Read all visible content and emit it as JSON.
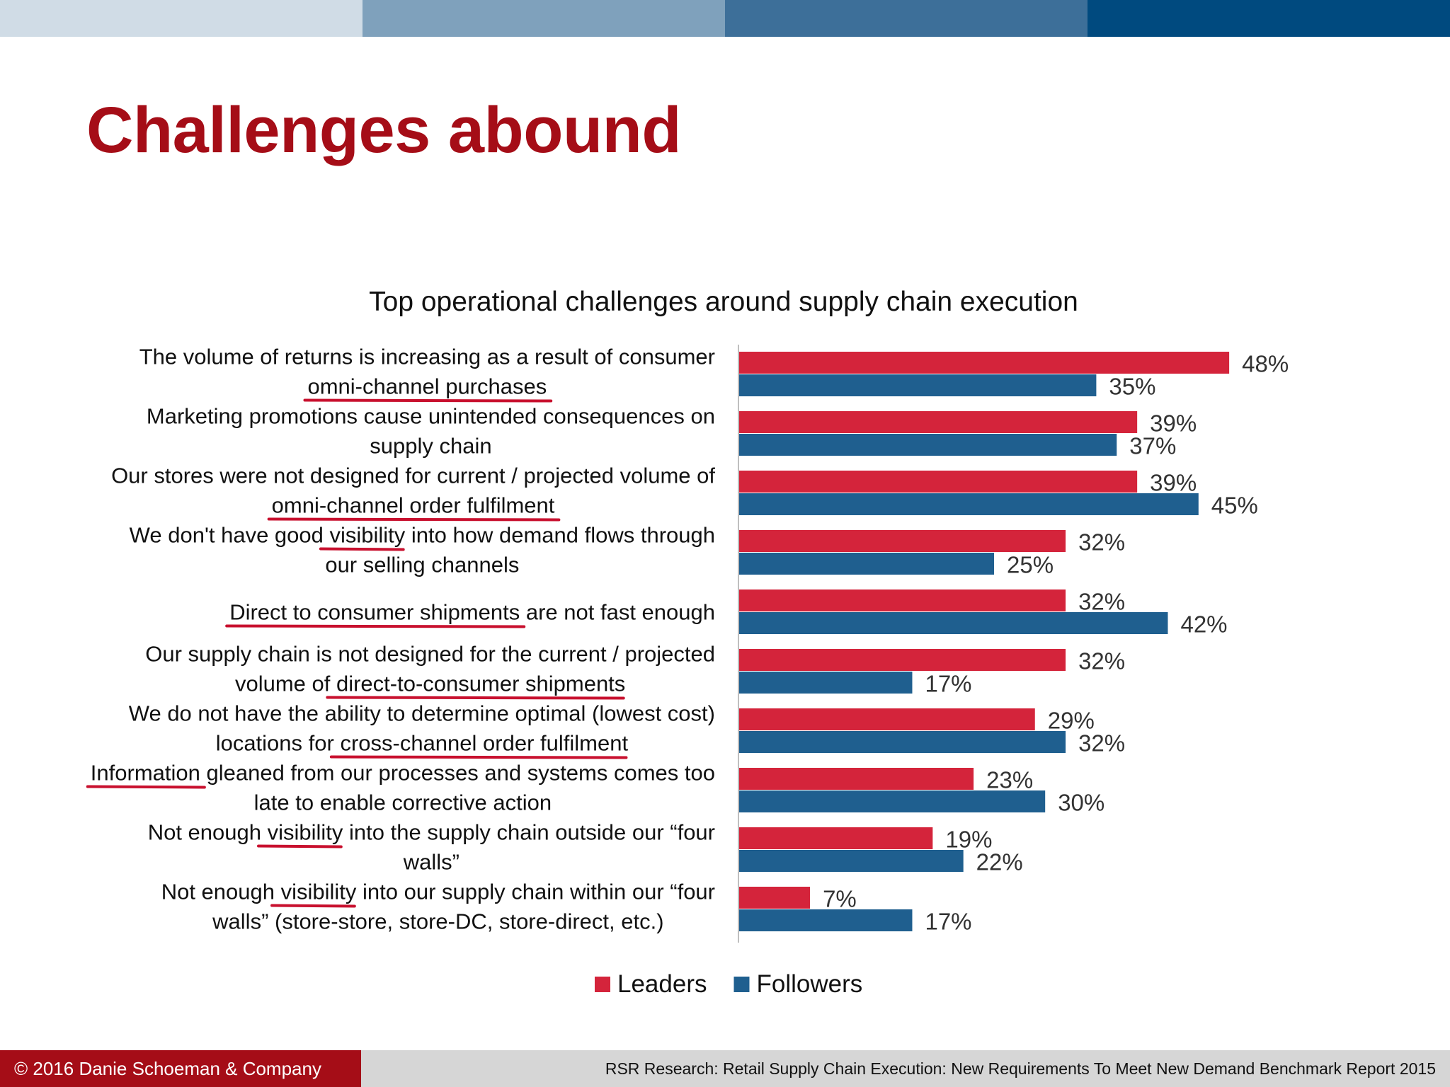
{
  "slide": {
    "title": "Challenges abound",
    "band_colors": [
      "#d0dce6",
      "#7fa1bc",
      "#3d6f99",
      "#004a7f"
    ],
    "footer_left": "© 2016 Danie Schoeman & Company",
    "footer_right": "RSR Research: Retail Supply Chain Execution: New Requirements To Meet New Demand Benchmark Report 2015"
  },
  "chart_data": {
    "type": "bar",
    "orientation": "horizontal",
    "title": "Top operational challenges around supply chain execution",
    "categories": [
      [
        "The volume of returns is increasing as a result of consumer",
        "omni-channel purchases"
      ],
      [
        "Marketing promotions cause unintended consequences on",
        "supply chain"
      ],
      [
        "Our stores were not designed for current / projected volume of",
        "omni-channel order fulfilment"
      ],
      [
        "We don't have good visibility into how demand flows through",
        "our selling channels"
      ],
      [
        "Direct to consumer shipments are not fast enough"
      ],
      [
        "Our supply chain is not designed for the current / projected",
        "volume of direct-to-consumer shipments"
      ],
      [
        "We do not have the ability to determine optimal (lowest cost)",
        "locations for cross-channel order fulfilment"
      ],
      [
        "Information gleaned from our processes and systems comes too",
        "late to enable corrective action"
      ],
      [
        "Not enough visibility into the supply chain outside our “four",
        "walls”"
      ],
      [
        "Not enough visibility into our supply chain within our “four",
        "walls” (store-store, store-DC, store-direct, etc.)"
      ]
    ],
    "underlines": [
      [
        [
          1,
          "omni-channel purchases"
        ]
      ],
      [],
      [
        [
          1,
          "omni-channel order fulfilment"
        ]
      ],
      [
        [
          0,
          "visibility"
        ]
      ],
      [
        [
          0,
          "Direct to consumer shipments"
        ]
      ],
      [
        [
          1,
          "direct-to-consumer shipments"
        ]
      ],
      [
        [
          1,
          "cross-channel order fulfilment"
        ]
      ],
      [
        [
          0,
          "Information"
        ]
      ],
      [
        [
          0,
          "visibility"
        ]
      ],
      [
        [
          0,
          "visibility"
        ]
      ]
    ],
    "series": [
      {
        "name": "Leaders",
        "color": "#d4243b",
        "values": [
          48,
          39,
          39,
          32,
          32,
          32,
          29,
          23,
          19,
          7
        ]
      },
      {
        "name": "Followers",
        "color": "#1f5f8f",
        "values": [
          35,
          37,
          45,
          25,
          42,
          17,
          32,
          30,
          22,
          17
        ]
      }
    ],
    "value_suffix": "%",
    "xlim": [
      0,
      60
    ],
    "legend_position": "bottom",
    "underline_color": "#c8102e"
  }
}
